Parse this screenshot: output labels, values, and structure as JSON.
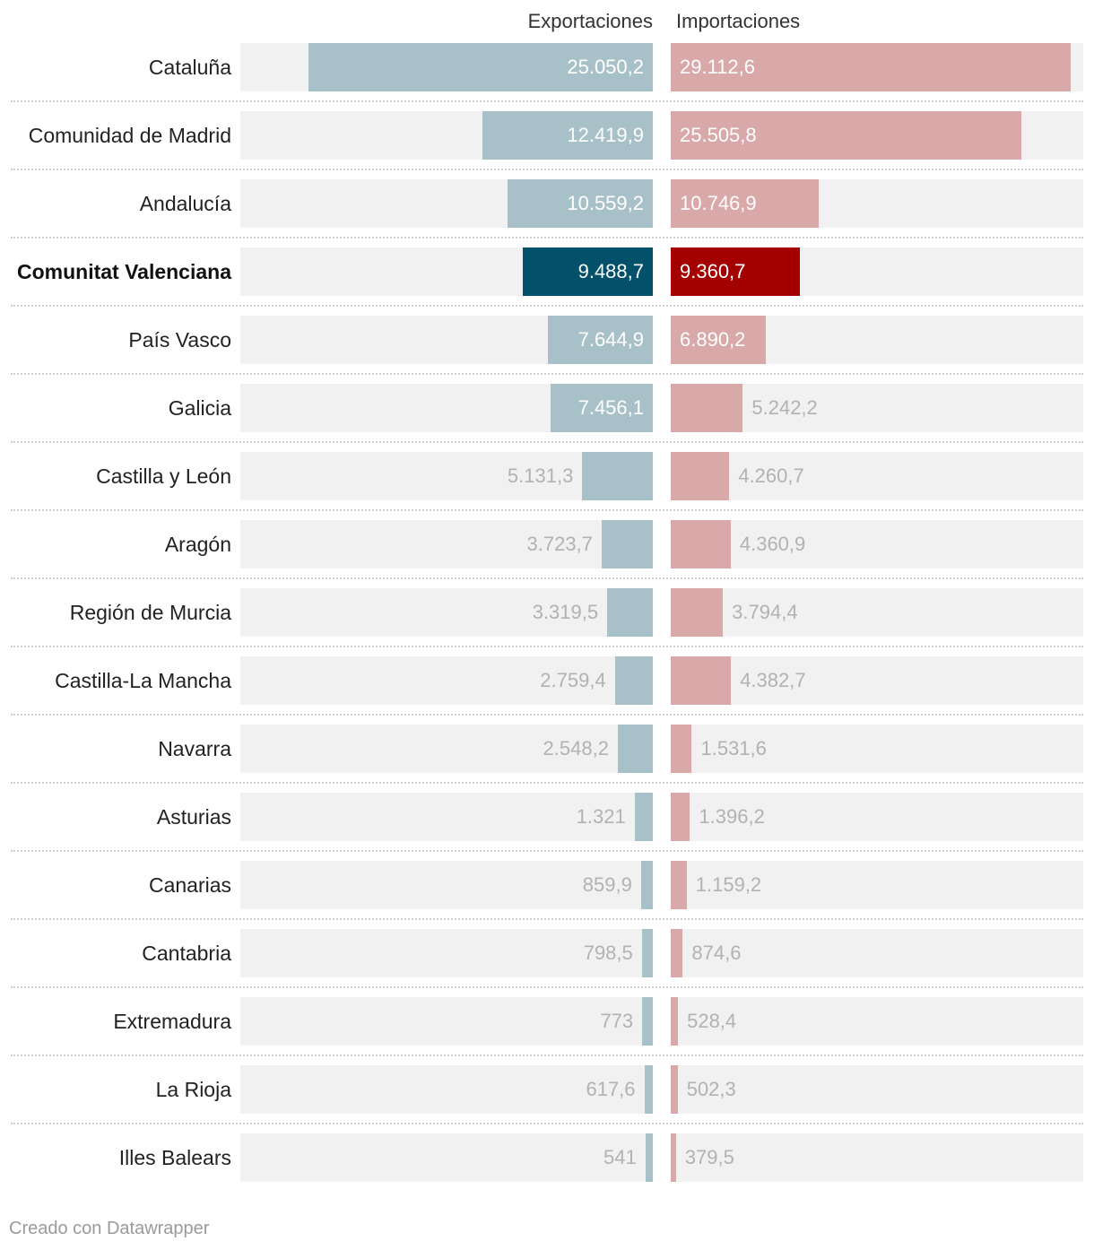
{
  "headers": {
    "exports": "Exportaciones",
    "imports": "Importaciones"
  },
  "footer": "Creado con Datawrapper",
  "colors": {
    "export_bar": "#a8c1c8",
    "import_bar": "#d9a9aa",
    "export_highlight": "#03506a",
    "import_highlight": "#a40000",
    "track": "#f1f1f1",
    "label_inside": "#ffffff",
    "label_outside": "#b2b2b2"
  },
  "chart_data": {
    "type": "bar",
    "orientation": "horizontal",
    "layout": "split-diverging",
    "xlim": [
      0,
      30000
    ],
    "highlight": "Comunitat Valenciana",
    "categories": [
      "Cataluña",
      "Comunidad de Madrid",
      "Andalucía",
      "Comunitat Valenciana",
      "País Vasco",
      "Galicia",
      "Castilla y León",
      "Aragón",
      "Región de Murcia",
      "Castilla-La Mancha",
      "Navarra",
      "Asturias",
      "Canarias",
      "Cantabria",
      "Extremadura",
      "La Rioja",
      "Illes Balears"
    ],
    "series": [
      {
        "name": "Exportaciones",
        "values": [
          25050.2,
          12419.9,
          10559.2,
          9488.7,
          7644.9,
          7456.1,
          5131.3,
          3723.7,
          3319.5,
          2759.4,
          2548.2,
          1321,
          859.9,
          798.5,
          773,
          617.6,
          541
        ],
        "labels": [
          "25.050,2",
          "12.419,9",
          "10.559,2",
          "9.488,7",
          "7.644,9",
          "7.456,1",
          "5.131,3",
          "3.723,7",
          "3.319,5",
          "2.759,4",
          "2.548,2",
          "1.321",
          "859,9",
          "798,5",
          "773",
          "617,6",
          "541"
        ]
      },
      {
        "name": "Importaciones",
        "values": [
          29112.6,
          25505.8,
          10746.9,
          9360.7,
          6890.2,
          5242.2,
          4260.7,
          4360.9,
          3794.4,
          4382.7,
          1531.6,
          1396.2,
          1159.2,
          874.6,
          528.4,
          502.3,
          379.5
        ],
        "labels": [
          "29.112,6",
          "25.505,8",
          "10.746,9",
          "9.360,7",
          "6.890,2",
          "5.242,2",
          "4.260,7",
          "4.360,9",
          "3.794,4",
          "4.382,7",
          "1.531,6",
          "1.396,2",
          "1.159,2",
          "874,6",
          "528,4",
          "502,3",
          "379,5"
        ]
      }
    ]
  }
}
